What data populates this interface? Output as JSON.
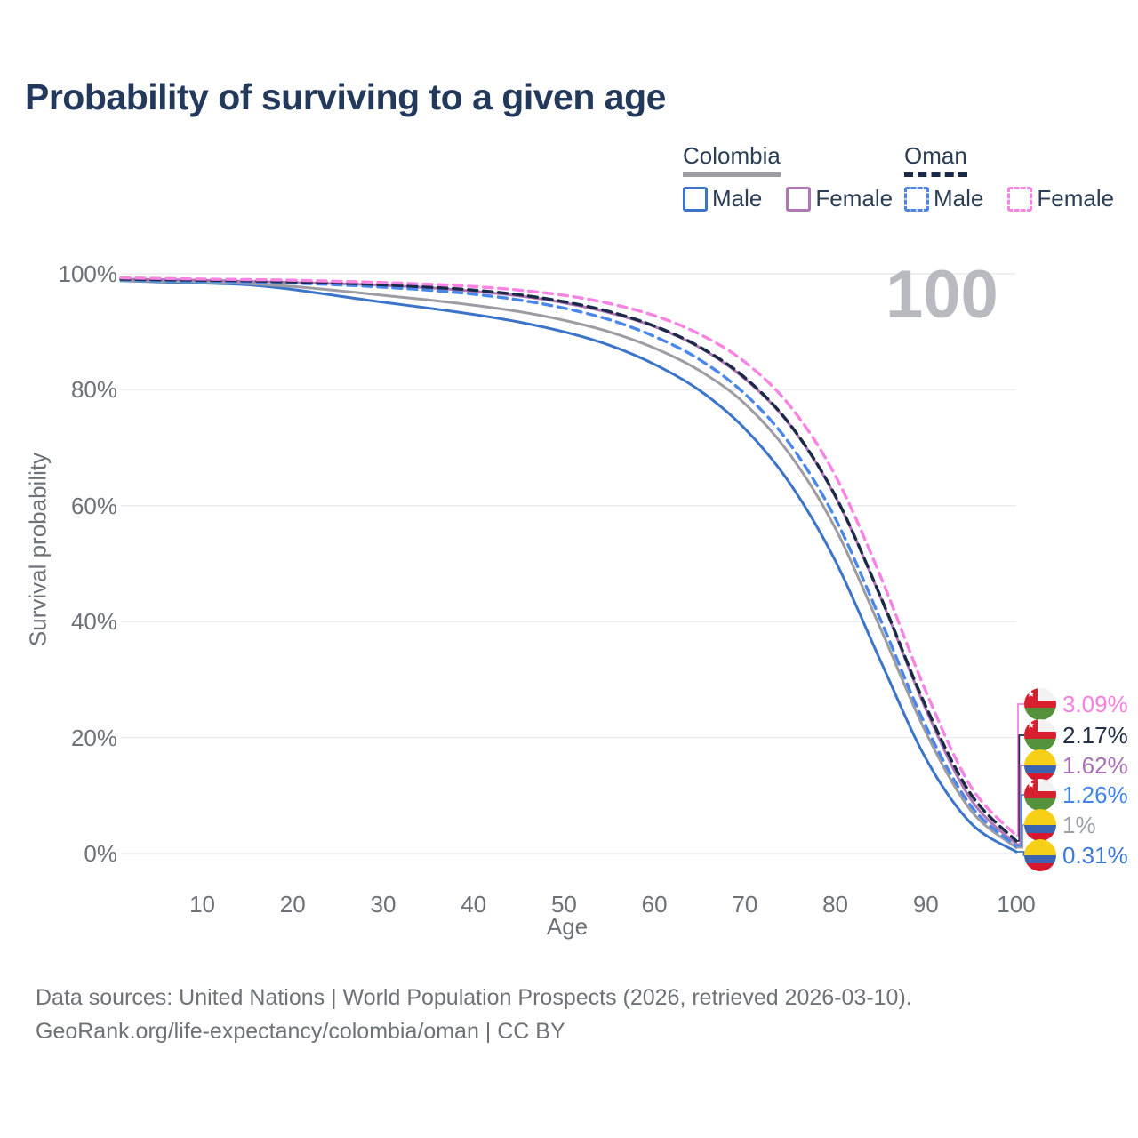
{
  "title": "Probability of surviving to a given age",
  "watermark": "100",
  "legend": {
    "groups": [
      {
        "name": "Colombia",
        "underline_style": "solid",
        "underline_color": "#9c9ca2",
        "items": [
          {
            "label": "Male",
            "series": "colombia-male",
            "color": "#3b74c9",
            "style": "solid"
          },
          {
            "label": "Female",
            "series": "colombia-female",
            "color": "#b076b6",
            "style": "solid"
          }
        ]
      },
      {
        "name": "Oman",
        "underline_style": "dashed",
        "underline_color": "#1b2a47",
        "items": [
          {
            "label": "Male",
            "series": "oman-male",
            "color": "#4a87e8",
            "style": "dashed"
          },
          {
            "label": "Female",
            "series": "oman-female",
            "color": "#f883e3",
            "style": "dashed"
          }
        ]
      }
    ]
  },
  "axes": {
    "x_label": "Age",
    "y_label": "Survival probability",
    "x_ticks": [
      10,
      20,
      30,
      40,
      50,
      60,
      70,
      80,
      90,
      100
    ],
    "y_ticks": [
      "100%",
      "80%",
      "60%",
      "40%",
      "20%",
      "0%"
    ],
    "y_tick_values": [
      100,
      80,
      60,
      40,
      20,
      0
    ]
  },
  "footer": {
    "line1": "Data sources: United Nations | World Population Prospects (2026, retrieved 2026-03-10).",
    "line2": "GeoRank.org/life-expectancy/colombia/oman | CC BY"
  },
  "chart_data": {
    "type": "line",
    "title": "Probability of surviving to a given age",
    "xlabel": "Age",
    "ylabel": "Survival probability",
    "xlim": [
      1,
      100
    ],
    "ylim": [
      0,
      100
    ],
    "grid": true,
    "legend_position": "top-right",
    "age_counter": "100",
    "ages": [
      1,
      5,
      10,
      15,
      20,
      25,
      30,
      35,
      40,
      45,
      50,
      55,
      60,
      65,
      70,
      75,
      80,
      85,
      90,
      95,
      100
    ],
    "series": [
      {
        "id": "colombia-male",
        "country": "Colombia",
        "sex": "Male",
        "color": "#3b74c9",
        "line_style": "solid",
        "end_label": "0.31%",
        "end_label_color": "#3d79d1",
        "flag": "colombia",
        "values": [
          98.8,
          98.6,
          98.4,
          98.1,
          97.3,
          96.2,
          95.1,
          94.1,
          93.0,
          91.7,
          90.0,
          87.7,
          84.4,
          79.9,
          73.3,
          63.8,
          50.5,
          33.2,
          16.4,
          5.2,
          0.31
        ]
      },
      {
        "id": "colombia-total",
        "country": "Colombia",
        "sex": "Both",
        "color": "#9c9ca2",
        "line_style": "solid",
        "end_label": "1%",
        "end_label_color": "#9ba0a7",
        "flag": "colombia",
        "values": [
          98.9,
          98.7,
          98.6,
          98.3,
          97.8,
          97.1,
          96.3,
          95.5,
          94.6,
          93.5,
          92.0,
          90.0,
          87.2,
          83.3,
          77.6,
          68.8,
          56.1,
          38.8,
          20.9,
          7.4,
          1.0
        ]
      },
      {
        "id": "colombia-female",
        "country": "Colombia",
        "sex": "Female",
        "color": "#b076b6",
        "line_style": "solid",
        "end_label": "1.62%",
        "end_label_color": "#a86fb5",
        "flag": "colombia",
        "values": [
          99.1,
          99.0,
          98.9,
          98.7,
          98.5,
          98.3,
          98.0,
          97.6,
          97.0,
          96.2,
          95.0,
          93.3,
          90.9,
          87.3,
          81.9,
          73.9,
          61.6,
          44.2,
          24.9,
          9.3,
          1.62
        ]
      },
      {
        "id": "oman-male",
        "country": "Oman",
        "sex": "Male",
        "color": "#4a87e8",
        "line_style": "dashed",
        "end_label": "1.26%",
        "end_label_color": "#4285e8",
        "flag": "oman",
        "values": [
          99.0,
          98.8,
          98.7,
          98.6,
          98.4,
          98.1,
          97.7,
          97.2,
          96.5,
          95.5,
          94.1,
          92.1,
          89.2,
          85.2,
          79.3,
          70.6,
          57.8,
          40.3,
          22.0,
          8.2,
          1.26
        ]
      },
      {
        "id": "oman-total",
        "country": "Oman",
        "sex": "Both",
        "color": "#1b2a47",
        "line_style": "dashed",
        "end_label": "2.17%",
        "end_label_color": "#243048",
        "flag": "oman",
        "values": [
          99.1,
          99.0,
          98.9,
          98.8,
          98.6,
          98.4,
          98.1,
          97.7,
          97.2,
          96.4,
          95.2,
          93.5,
          91.0,
          87.4,
          82.1,
          74.0,
          61.7,
          44.3,
          25.4,
          10.2,
          2.17
        ]
      },
      {
        "id": "oman-female",
        "country": "Oman",
        "sex": "Female",
        "color": "#f883e3",
        "line_style": "dashed",
        "end_label": "3.09%",
        "end_label_color": "#f77fdf",
        "flag": "oman",
        "values": [
          99.3,
          99.2,
          99.1,
          99.0,
          98.9,
          98.7,
          98.5,
          98.2,
          97.8,
          97.2,
          96.3,
          94.9,
          92.8,
          89.6,
          84.8,
          77.2,
          65.2,
          47.8,
          28.0,
          11.5,
          3.09
        ]
      }
    ]
  }
}
